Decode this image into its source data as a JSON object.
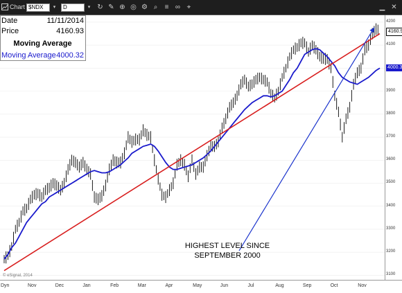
{
  "toolbar": {
    "window_label": "Chart",
    "symbol": "$NDX",
    "interval": "D"
  },
  "info_box": {
    "date_label": "Date",
    "date_value": "11/11/2014",
    "price_label": "Price",
    "price_value": "4160.93",
    "ma_heading": "Moving Average",
    "ma_label": "Moving Average",
    "ma_value": "4000.32"
  },
  "tags": {
    "price": "4160.93",
    "ma": "4000.32"
  },
  "annotation": {
    "line1": "HIGHEST LEVEL SINCE",
    "line2": "SEPTEMBER 2000"
  },
  "watermark": "© eSignal, 2014",
  "date_axis": {
    "corner": "Dyn",
    "months": [
      "Nov",
      "Dec",
      "Jan",
      "Feb",
      "Mar",
      "Apr",
      "May",
      "Jun",
      "Jul",
      "Aug",
      "Sep",
      "Oct",
      "Nov"
    ]
  },
  "price_axis": {
    "ticks": [
      "4200",
      "4100",
      "4000",
      "3900",
      "3800",
      "3700",
      "3600",
      "3500",
      "3400",
      "3300",
      "3200",
      "3100"
    ]
  },
  "chart_data": {
    "type": "line",
    "title": "",
    "xlabel": "",
    "ylabel": "",
    "ylim": [
      3080,
      4230
    ],
    "x_labels": [
      "Nov",
      "Dec",
      "Jan",
      "Feb",
      "Mar",
      "Apr",
      "May",
      "Jun",
      "Jul",
      "Aug",
      "Sep",
      "Oct",
      "Nov"
    ],
    "colors": {
      "price": "#000000",
      "ma": "#1a1acc",
      "trendline": "#d81e1e",
      "arrow": "#1a33cc"
    },
    "series": [
      {
        "values": [
          3170,
          3185,
          3225,
          3300,
          3330,
          3380,
          3390,
          3430,
          3450,
          3455,
          3440,
          3470,
          3480,
          3500,
          3490,
          3470,
          3500,
          3560,
          3600,
          3590,
          3570,
          3590,
          3560,
          3540,
          3440,
          3430,
          3445,
          3490,
          3560,
          3600,
          3590,
          3590,
          3630,
          3700,
          3680,
          3690,
          3690,
          3730,
          3710,
          3700,
          3600,
          3520,
          3450,
          3440,
          3470,
          3500,
          3580,
          3600,
          3580,
          3530,
          3600,
          3540,
          3570,
          3570,
          3620,
          3660,
          3660,
          3680,
          3740,
          3780,
          3830,
          3850,
          3880,
          3930,
          3950,
          3920,
          3930,
          3950,
          3960,
          3950,
          3940,
          3890,
          3870,
          3900,
          3960,
          4000,
          4050,
          4080,
          4090,
          4110,
          4110,
          4070,
          4100,
          4080,
          4050,
          4040,
          4040,
          4000,
          3880,
          3810,
          3700,
          3780,
          3830,
          3930,
          3980,
          4000,
          4080,
          4100,
          4150,
          4170,
          4161
        ]
      },
      {
        "values": [
          3170,
          3190,
          3220,
          3240,
          3270,
          3300,
          3330,
          3350,
          3370,
          3390,
          3410,
          3420,
          3440,
          3450,
          3460,
          3470,
          3480,
          3490,
          3500,
          3510,
          3520,
          3530,
          3540,
          3550,
          3555,
          3550,
          3545,
          3545,
          3550,
          3560,
          3570,
          3580,
          3595,
          3610,
          3630,
          3640,
          3650,
          3660,
          3665,
          3670,
          3660,
          3640,
          3615,
          3590,
          3570,
          3560,
          3560,
          3565,
          3570,
          3575,
          3580,
          3590,
          3600,
          3610,
          3625,
          3640,
          3660,
          3680,
          3700,
          3720,
          3740,
          3760,
          3780,
          3800,
          3820,
          3835,
          3850,
          3860,
          3870,
          3880,
          3880,
          3875,
          3880,
          3890,
          3900,
          3925,
          3950,
          3980,
          4000,
          4030,
          4060,
          4070,
          4080,
          4085,
          4080,
          4065,
          4050,
          4030,
          4010,
          3980,
          3960,
          3950,
          3940,
          3935,
          3930,
          3940,
          3950,
          3960,
          3975,
          3990,
          4000
        ]
      }
    ],
    "trendline": [
      [
        0,
        3120
      ],
      [
        100,
        4150
      ]
    ],
    "arrow": {
      "from": [
        66,
        3270
      ],
      "to": [
        100,
        4195
      ]
    },
    "last_price": 4160.93,
    "last_ma": 4000.32
  }
}
